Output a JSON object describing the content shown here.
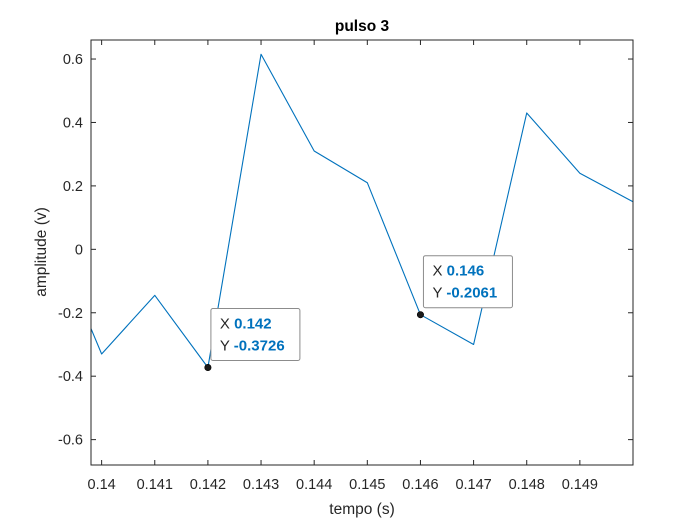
{
  "chart_data": {
    "type": "line",
    "title": "pulso 3",
    "xlabel": "tempo (s)",
    "ylabel": "amplitude (v)",
    "xlim": [
      0.1398,
      0.15
    ],
    "ylim": [
      -0.68,
      0.66
    ],
    "xticks": [
      0.14,
      0.141,
      0.142,
      0.143,
      0.144,
      0.145,
      0.146,
      0.147,
      0.148,
      0.149
    ],
    "xtick_labels": [
      "0.14",
      "0.141",
      "0.142",
      "0.143",
      "0.144",
      "0.145",
      "0.146",
      "0.147",
      "0.148",
      "0.149"
    ],
    "yticks": [
      -0.6,
      -0.4,
      -0.2,
      0,
      0.2,
      0.4,
      0.6
    ],
    "ytick_labels": [
      "-0.6",
      "-0.4",
      "-0.2",
      "0",
      "0.2",
      "0.4",
      "0.6"
    ],
    "grid": false,
    "line_color": "#0072bd",
    "series": [
      {
        "x": [
          0.1398,
          0.14,
          0.141,
          0.142,
          0.143,
          0.144,
          0.145,
          0.146,
          0.147,
          0.148,
          0.149,
          0.15
        ],
        "y": [
          -0.25,
          -0.33,
          -0.145,
          -0.3726,
          0.615,
          0.31,
          0.21,
          -0.2061,
          -0.3,
          0.43,
          0.24,
          0.15
        ]
      }
    ],
    "datatips": [
      {
        "x": 0.142,
        "y": -0.3726,
        "x_key": "X",
        "y_key": "Y",
        "x_text": "0.142",
        "y_text": "-0.3726"
      },
      {
        "x": 0.146,
        "y": -0.2061,
        "x_key": "X",
        "y_key": "Y",
        "x_text": "0.146",
        "y_text": "-0.2061"
      }
    ]
  }
}
